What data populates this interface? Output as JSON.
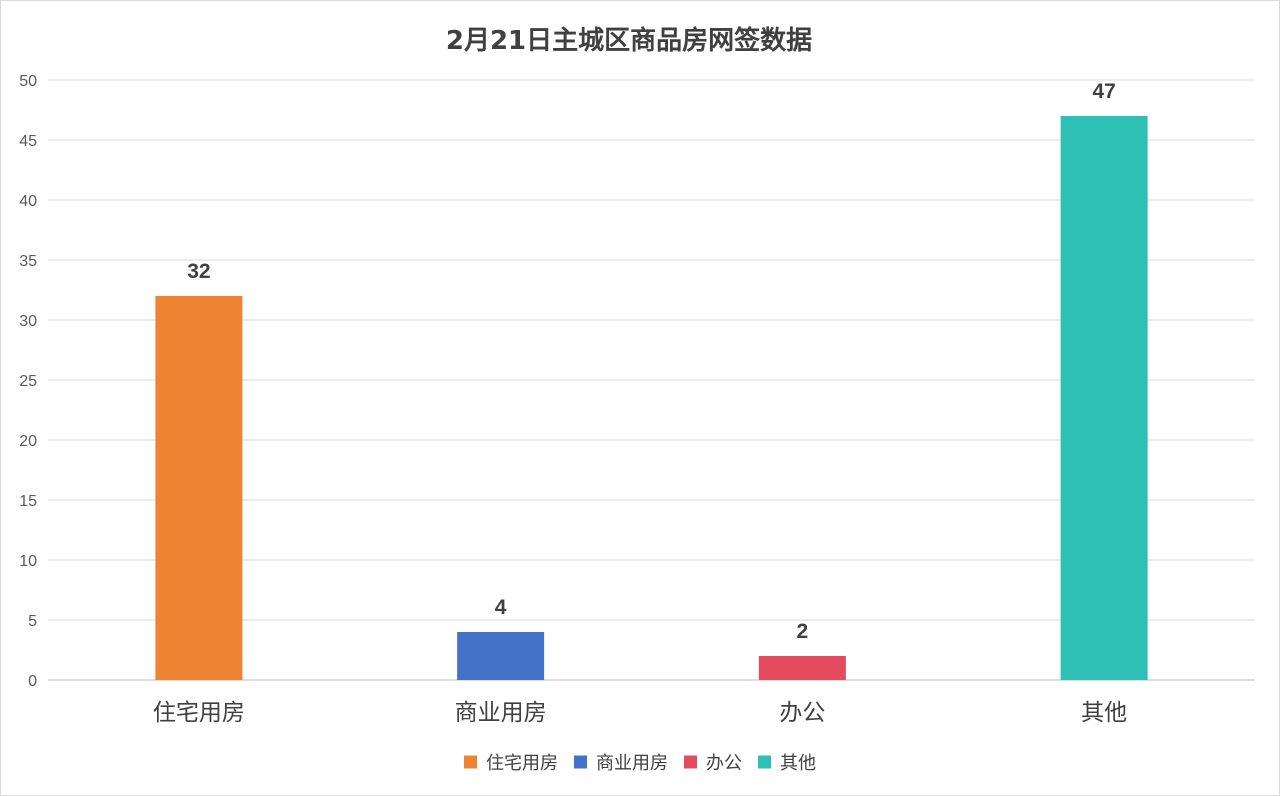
{
  "chart_data": {
    "type": "bar",
    "title": "2月21日主城区商品房网签数据",
    "categories": [
      "住宅用房",
      "商业用房",
      "办公",
      "其他"
    ],
    "values": [
      32,
      4,
      2,
      47
    ],
    "colors": [
      "#ED8431",
      "#4472C8",
      "#E44B5E",
      "#2EC0B5"
    ],
    "data_labels": [
      "32",
      "4",
      "2",
      "47"
    ],
    "ylim": [
      0,
      50
    ],
    "yticks": [
      0,
      5,
      10,
      15,
      20,
      25,
      30,
      35,
      40,
      45,
      50
    ],
    "xlabel": "",
    "ylabel": "",
    "grid": true,
    "legend": {
      "position": "bottom",
      "entries": [
        "住宅用房",
        "商业用房",
        "办公",
        "其他"
      ]
    }
  }
}
